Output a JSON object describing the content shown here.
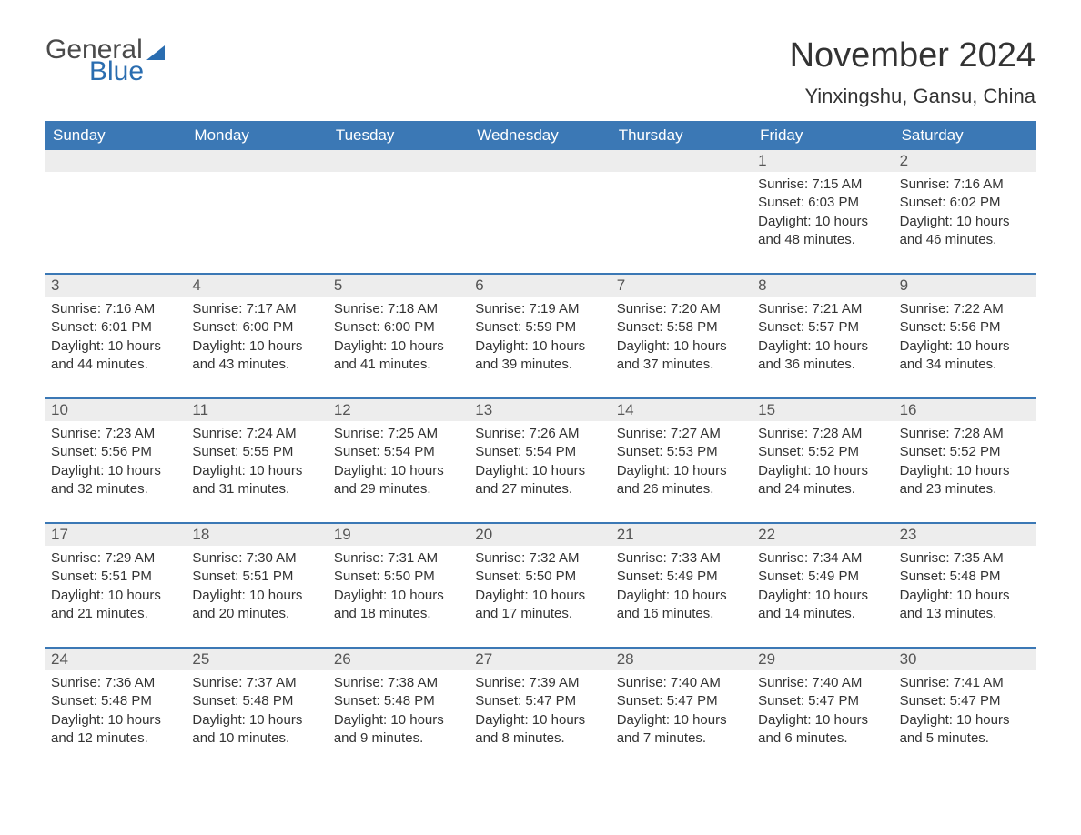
{
  "logo": {
    "text1": "General",
    "text2": "Blue",
    "color_general": "#4a4a4a",
    "color_blue": "#2a6db0"
  },
  "title": {
    "month": "November 2024",
    "location": "Yinxingshu, Gansu, China"
  },
  "colors": {
    "header_bg": "#3b78b5",
    "header_text": "#ffffff",
    "daynum_bg": "#ededed",
    "week_divider": "#3b78b5",
    "body_text": "#333333",
    "page_bg": "#ffffff"
  },
  "day_names": [
    "Sunday",
    "Monday",
    "Tuesday",
    "Wednesday",
    "Thursday",
    "Friday",
    "Saturday"
  ],
  "weeks": [
    [
      {
        "empty": true
      },
      {
        "empty": true
      },
      {
        "empty": true
      },
      {
        "empty": true
      },
      {
        "empty": true
      },
      {
        "num": "1",
        "sunrise": "Sunrise: 7:15 AM",
        "sunset": "Sunset: 6:03 PM",
        "daylight": "Daylight: 10 hours and 48 minutes."
      },
      {
        "num": "2",
        "sunrise": "Sunrise: 7:16 AM",
        "sunset": "Sunset: 6:02 PM",
        "daylight": "Daylight: 10 hours and 46 minutes."
      }
    ],
    [
      {
        "num": "3",
        "sunrise": "Sunrise: 7:16 AM",
        "sunset": "Sunset: 6:01 PM",
        "daylight": "Daylight: 10 hours and 44 minutes."
      },
      {
        "num": "4",
        "sunrise": "Sunrise: 7:17 AM",
        "sunset": "Sunset: 6:00 PM",
        "daylight": "Daylight: 10 hours and 43 minutes."
      },
      {
        "num": "5",
        "sunrise": "Sunrise: 7:18 AM",
        "sunset": "Sunset: 6:00 PM",
        "daylight": "Daylight: 10 hours and 41 minutes."
      },
      {
        "num": "6",
        "sunrise": "Sunrise: 7:19 AM",
        "sunset": "Sunset: 5:59 PM",
        "daylight": "Daylight: 10 hours and 39 minutes."
      },
      {
        "num": "7",
        "sunrise": "Sunrise: 7:20 AM",
        "sunset": "Sunset: 5:58 PM",
        "daylight": "Daylight: 10 hours and 37 minutes."
      },
      {
        "num": "8",
        "sunrise": "Sunrise: 7:21 AM",
        "sunset": "Sunset: 5:57 PM",
        "daylight": "Daylight: 10 hours and 36 minutes."
      },
      {
        "num": "9",
        "sunrise": "Sunrise: 7:22 AM",
        "sunset": "Sunset: 5:56 PM",
        "daylight": "Daylight: 10 hours and 34 minutes."
      }
    ],
    [
      {
        "num": "10",
        "sunrise": "Sunrise: 7:23 AM",
        "sunset": "Sunset: 5:56 PM",
        "daylight": "Daylight: 10 hours and 32 minutes."
      },
      {
        "num": "11",
        "sunrise": "Sunrise: 7:24 AM",
        "sunset": "Sunset: 5:55 PM",
        "daylight": "Daylight: 10 hours and 31 minutes."
      },
      {
        "num": "12",
        "sunrise": "Sunrise: 7:25 AM",
        "sunset": "Sunset: 5:54 PM",
        "daylight": "Daylight: 10 hours and 29 minutes."
      },
      {
        "num": "13",
        "sunrise": "Sunrise: 7:26 AM",
        "sunset": "Sunset: 5:54 PM",
        "daylight": "Daylight: 10 hours and 27 minutes."
      },
      {
        "num": "14",
        "sunrise": "Sunrise: 7:27 AM",
        "sunset": "Sunset: 5:53 PM",
        "daylight": "Daylight: 10 hours and 26 minutes."
      },
      {
        "num": "15",
        "sunrise": "Sunrise: 7:28 AM",
        "sunset": "Sunset: 5:52 PM",
        "daylight": "Daylight: 10 hours and 24 minutes."
      },
      {
        "num": "16",
        "sunrise": "Sunrise: 7:28 AM",
        "sunset": "Sunset: 5:52 PM",
        "daylight": "Daylight: 10 hours and 23 minutes."
      }
    ],
    [
      {
        "num": "17",
        "sunrise": "Sunrise: 7:29 AM",
        "sunset": "Sunset: 5:51 PM",
        "daylight": "Daylight: 10 hours and 21 minutes."
      },
      {
        "num": "18",
        "sunrise": "Sunrise: 7:30 AM",
        "sunset": "Sunset: 5:51 PM",
        "daylight": "Daylight: 10 hours and 20 minutes."
      },
      {
        "num": "19",
        "sunrise": "Sunrise: 7:31 AM",
        "sunset": "Sunset: 5:50 PM",
        "daylight": "Daylight: 10 hours and 18 minutes."
      },
      {
        "num": "20",
        "sunrise": "Sunrise: 7:32 AM",
        "sunset": "Sunset: 5:50 PM",
        "daylight": "Daylight: 10 hours and 17 minutes."
      },
      {
        "num": "21",
        "sunrise": "Sunrise: 7:33 AM",
        "sunset": "Sunset: 5:49 PM",
        "daylight": "Daylight: 10 hours and 16 minutes."
      },
      {
        "num": "22",
        "sunrise": "Sunrise: 7:34 AM",
        "sunset": "Sunset: 5:49 PM",
        "daylight": "Daylight: 10 hours and 14 minutes."
      },
      {
        "num": "23",
        "sunrise": "Sunrise: 7:35 AM",
        "sunset": "Sunset: 5:48 PM",
        "daylight": "Daylight: 10 hours and 13 minutes."
      }
    ],
    [
      {
        "num": "24",
        "sunrise": "Sunrise: 7:36 AM",
        "sunset": "Sunset: 5:48 PM",
        "daylight": "Daylight: 10 hours and 12 minutes."
      },
      {
        "num": "25",
        "sunrise": "Sunrise: 7:37 AM",
        "sunset": "Sunset: 5:48 PM",
        "daylight": "Daylight: 10 hours and 10 minutes."
      },
      {
        "num": "26",
        "sunrise": "Sunrise: 7:38 AM",
        "sunset": "Sunset: 5:48 PM",
        "daylight": "Daylight: 10 hours and 9 minutes."
      },
      {
        "num": "27",
        "sunrise": "Sunrise: 7:39 AM",
        "sunset": "Sunset: 5:47 PM",
        "daylight": "Daylight: 10 hours and 8 minutes."
      },
      {
        "num": "28",
        "sunrise": "Sunrise: 7:40 AM",
        "sunset": "Sunset: 5:47 PM",
        "daylight": "Daylight: 10 hours and 7 minutes."
      },
      {
        "num": "29",
        "sunrise": "Sunrise: 7:40 AM",
        "sunset": "Sunset: 5:47 PM",
        "daylight": "Daylight: 10 hours and 6 minutes."
      },
      {
        "num": "30",
        "sunrise": "Sunrise: 7:41 AM",
        "sunset": "Sunset: 5:47 PM",
        "daylight": "Daylight: 10 hours and 5 minutes."
      }
    ]
  ]
}
